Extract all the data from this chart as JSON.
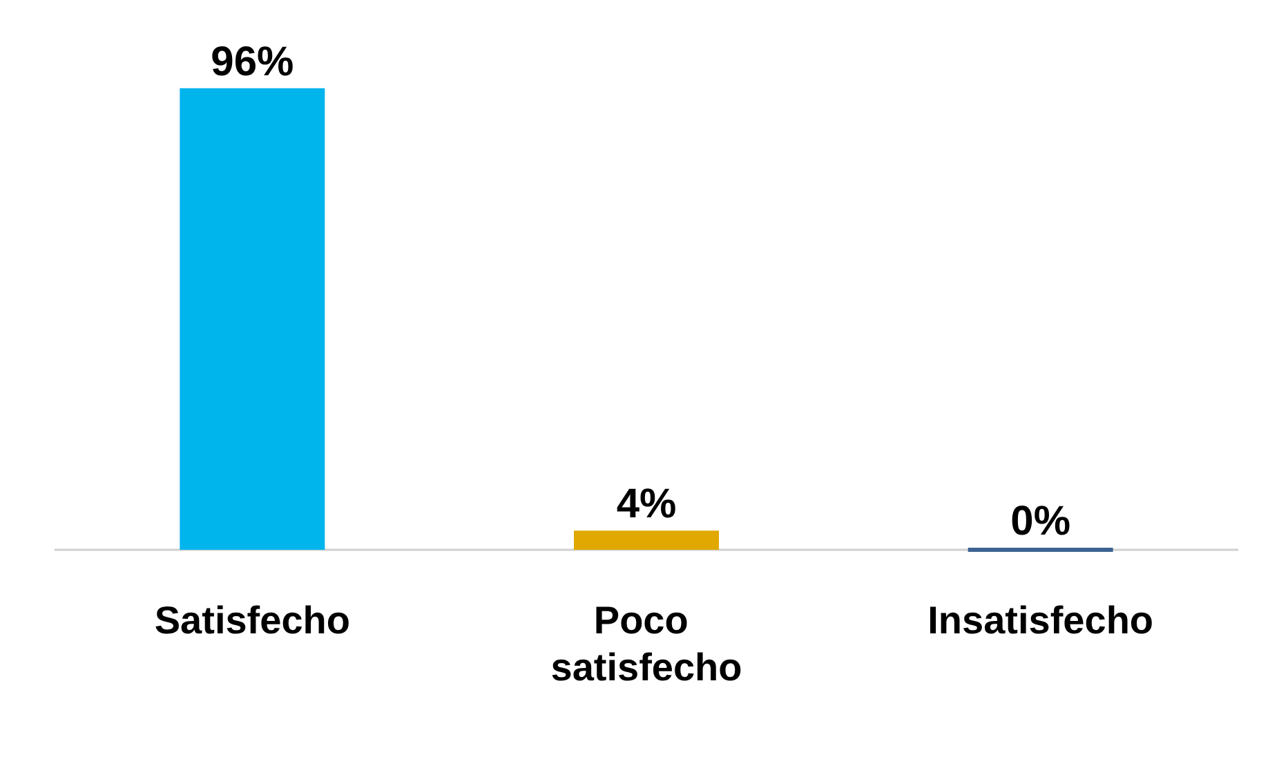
{
  "chart_data": {
    "type": "bar",
    "categories": [
      "Satisfecho",
      "Poco satisfecho",
      "Insatisfecho"
    ],
    "values": [
      96,
      4,
      0
    ],
    "colors": [
      "#00b4ec",
      "#e0a800",
      "#3c6291"
    ],
    "value_labels": [
      "96%",
      "4%",
      "0%"
    ]
  }
}
